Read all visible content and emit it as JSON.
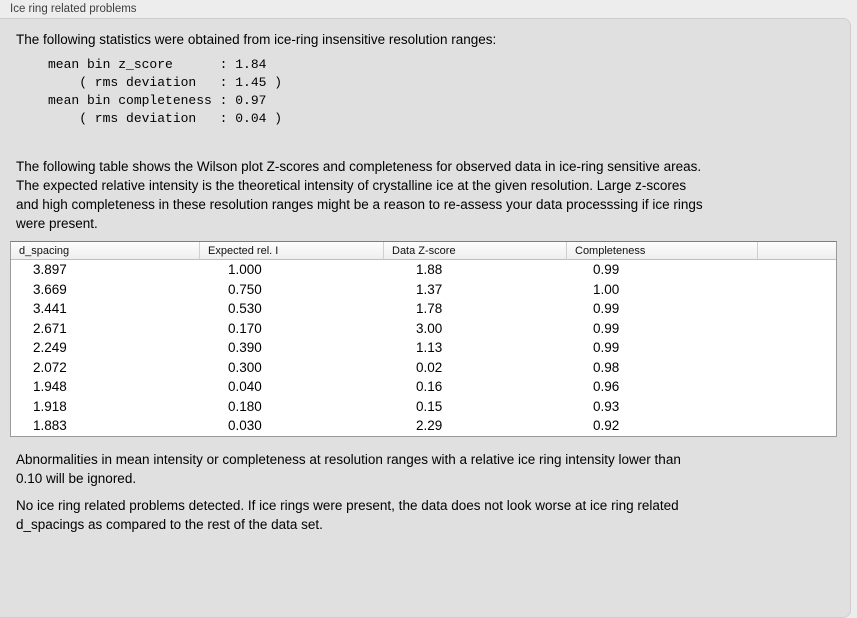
{
  "panel": {
    "title": "Ice ring related problems"
  },
  "intro": "The following statistics were obtained from ice-ring insensitive resolution ranges:",
  "stats_block": "mean bin z_score      : 1.84\n    ( rms deviation   : 1.45 )\nmean bin completeness : 0.97\n    ( rms deviation   : 0.04 )",
  "statistics": {
    "mean_bin_z_score": "1.84",
    "z_score_rms_deviation": "1.45",
    "mean_bin_completeness": "0.97",
    "completeness_rms_deviation": "0.04"
  },
  "table_intro": "The following table shows the Wilson plot Z-scores and completeness for observed data in ice-ring sensitive areas.\nThe expected relative intensity is the theoretical intensity of crystalline ice at the given resolution. Large z-scores\nand high completeness in these resolution ranges might be a reason to re-assess your data processsing if ice rings\nwere present.",
  "table": {
    "columns": [
      "d_spacing",
      "Expected rel. I",
      "Data Z-score",
      "Completeness"
    ],
    "rows": [
      [
        "3.897",
        "1.000",
        "1.88",
        "0.99"
      ],
      [
        "3.669",
        "0.750",
        "1.37",
        "1.00"
      ],
      [
        "3.441",
        "0.530",
        "1.78",
        "0.99"
      ],
      [
        "2.671",
        "0.170",
        "3.00",
        "0.99"
      ],
      [
        "2.249",
        "0.390",
        "1.13",
        "0.99"
      ],
      [
        "2.072",
        "0.300",
        "0.02",
        "0.98"
      ],
      [
        "1.948",
        "0.040",
        "0.16",
        "0.96"
      ],
      [
        "1.918",
        "0.180",
        "0.15",
        "0.93"
      ],
      [
        "1.883",
        "0.030",
        "2.29",
        "0.92"
      ]
    ]
  },
  "note_ignore": "Abnormalities in mean intensity or completeness at resolution ranges with a relative ice ring intensity lower than\n0.10 will be ignored.",
  "conclusion": "No ice ring related problems detected. If ice rings were present, the data does not look worse at ice ring related\nd_spacings as compared to the rest of the data set.",
  "colors": {
    "page_bg": "#ededed",
    "panel_bg": "#e0e0e0",
    "panel_border": "#cdcdcd",
    "table_bg": "#ffffff",
    "table_border": "#9b9b9b",
    "header_separator": "#cfcfcf",
    "text": "#000000",
    "title_text": "#3f3f3f"
  }
}
